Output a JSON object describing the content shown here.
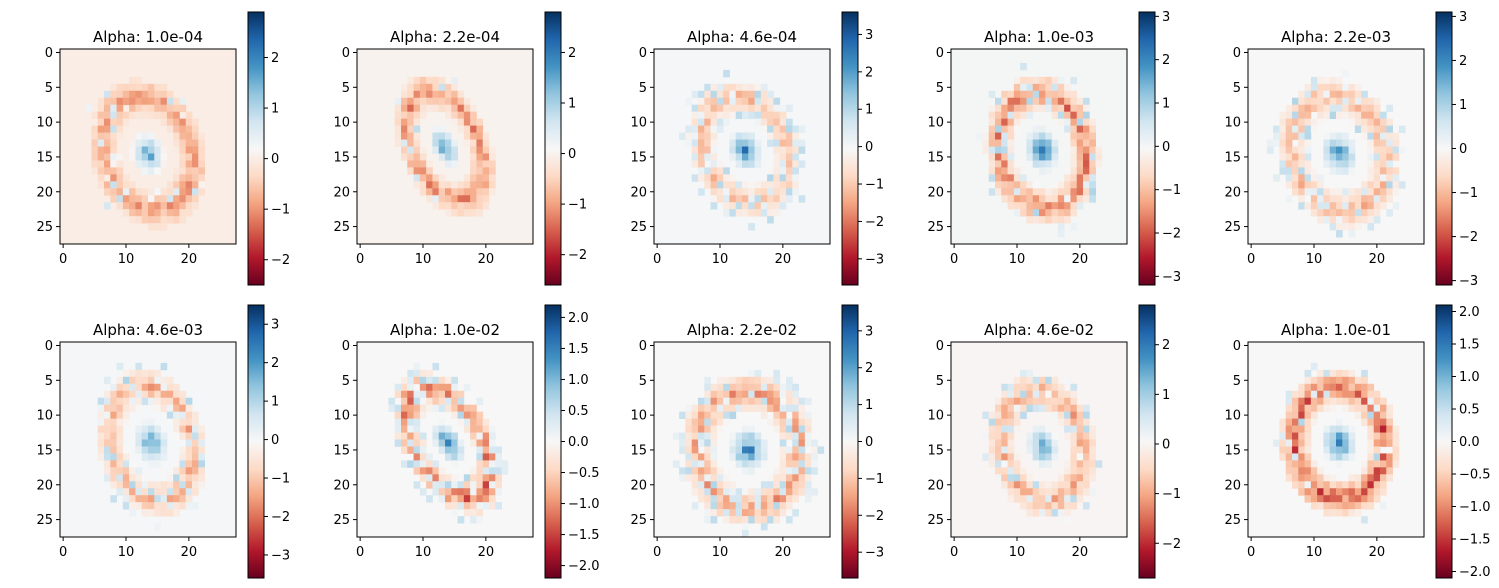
{
  "figure": {
    "layout": "2 rows x 5 columns of heatmaps, each with its own vertical colorbar",
    "colormap": "RdBu",
    "colormap_stops": [
      "#67001f",
      "#b2182b",
      "#d6604d",
      "#f4a582",
      "#fddbc7",
      "#f7f7f7",
      "#d1e5f0",
      "#92c5de",
      "#4393c3",
      "#2166ac",
      "#053061"
    ]
  },
  "chart_data": [
    {
      "type": "heatmap",
      "title": "Alpha: 1.0e-04",
      "x_ticks": [
        "0",
        "10",
        "20"
      ],
      "y_ticks": [
        "0",
        "5",
        "10",
        "15",
        "20",
        "25"
      ],
      "xlim": [
        -0.5,
        27.5
      ],
      "ylim": [
        27.5,
        -0.5
      ],
      "colorbar": {
        "vmin": -2.5,
        "vmax": 2.9,
        "tick_values": [
          -2,
          -1,
          0,
          1,
          2
        ],
        "tick_labels": [
          "−2",
          "−1",
          "0",
          "1",
          "2"
        ]
      },
      "pattern": {
        "ring_cx": 13.5,
        "ring_cy": 14.5,
        "rx": 8.5,
        "ry": 10.5,
        "tilt": 0.45,
        "ring": 0.5,
        "core": 0.75,
        "halo": 0.1,
        "seed": 1
      }
    },
    {
      "type": "heatmap",
      "title": "Alpha: 2.2e-04",
      "x_ticks": [
        "0",
        "10",
        "20"
      ],
      "y_ticks": [
        "0",
        "5",
        "10",
        "15",
        "20",
        "25"
      ],
      "xlim": [
        -0.5,
        27.5
      ],
      "ylim": [
        27.5,
        -0.5
      ],
      "colorbar": {
        "vmin": -2.6,
        "vmax": 2.8,
        "tick_values": [
          -2,
          -1,
          0,
          1,
          2
        ],
        "tick_labels": [
          "−2",
          "−1",
          "0",
          "1",
          "2"
        ]
      },
      "pattern": {
        "ring_cx": 13.5,
        "ring_cy": 13.5,
        "rx": 6.5,
        "ry": 10.5,
        "tilt": 0.5,
        "ring": 0.6,
        "core": 0.8,
        "halo": 0.05,
        "seed": 2
      }
    },
    {
      "type": "heatmap",
      "title": "Alpha: 4.6e-04",
      "x_ticks": [
        "0",
        "10",
        "20"
      ],
      "y_ticks": [
        "0",
        "5",
        "10",
        "15",
        "20",
        "25"
      ],
      "xlim": [
        -0.5,
        27.5
      ],
      "ylim": [
        27.5,
        -0.5
      ],
      "colorbar": {
        "vmin": -3.7,
        "vmax": 3.6,
        "tick_values": [
          -3,
          -2,
          -1,
          0,
          1,
          2,
          3
        ],
        "tick_labels": [
          "−3",
          "−2",
          "−1",
          "0",
          "1",
          "2",
          "3"
        ]
      },
      "pattern": {
        "ring_cx": 14.0,
        "ring_cy": 14.0,
        "rx": 8.0,
        "ry": 10.0,
        "tilt": 0.55,
        "ring": 0.45,
        "core": 0.8,
        "halo": 0.25,
        "seed": 3
      }
    },
    {
      "type": "heatmap",
      "title": "Alpha: 1.0e-03",
      "x_ticks": [
        "0",
        "10",
        "20"
      ],
      "y_ticks": [
        "0",
        "5",
        "10",
        "15",
        "20",
        "25"
      ],
      "xlim": [
        -0.5,
        27.5
      ],
      "ylim": [
        27.5,
        -0.5
      ],
      "colorbar": {
        "vmin": -3.2,
        "vmax": 3.1,
        "tick_values": [
          -3,
          -2,
          -1,
          0,
          1,
          2,
          3
        ],
        "tick_labels": [
          "−3",
          "−2",
          "−1",
          "0",
          "1",
          "2",
          "3"
        ]
      },
      "pattern": {
        "ring_cx": 14.0,
        "ring_cy": 14.0,
        "rx": 8.5,
        "ry": 10.5,
        "tilt": 0.25,
        "ring": 0.7,
        "core": 0.85,
        "halo": 0.15,
        "seed": 4
      }
    },
    {
      "type": "heatmap",
      "title": "Alpha: 2.2e-03",
      "x_ticks": [
        "0",
        "10",
        "20"
      ],
      "y_ticks": [
        "0",
        "5",
        "10",
        "15",
        "20",
        "25"
      ],
      "xlim": [
        -0.5,
        27.5
      ],
      "ylim": [
        27.5,
        -0.5
      ],
      "colorbar": {
        "vmin": -3.1,
        "vmax": 3.1,
        "tick_values": [
          -3,
          -2,
          -1,
          0,
          1,
          2,
          3
        ],
        "tick_labels": [
          "−3",
          "−2",
          "−1",
          "0",
          "1",
          "2",
          "3"
        ]
      },
      "pattern": {
        "ring_cx": 14.0,
        "ring_cy": 14.5,
        "rx": 9.0,
        "ry": 10.5,
        "tilt": 0.5,
        "ring": 0.45,
        "core": 0.75,
        "halo": 0.2,
        "seed": 5
      }
    },
    {
      "type": "heatmap",
      "title": "Alpha: 4.6e-03",
      "x_ticks": [
        "0",
        "10",
        "20"
      ],
      "y_ticks": [
        "0",
        "5",
        "10",
        "15",
        "20",
        "25"
      ],
      "xlim": [
        -0.5,
        27.5
      ],
      "ylim": [
        27.5,
        -0.5
      ],
      "colorbar": {
        "vmin": -3.6,
        "vmax": 3.5,
        "tick_values": [
          -3,
          -2,
          -1,
          0,
          1,
          2,
          3
        ],
        "tick_labels": [
          "−3",
          "−2",
          "−1",
          "0",
          "1",
          "2",
          "3"
        ]
      },
      "pattern": {
        "ring_cx": 14.0,
        "ring_cy": 14.0,
        "rx": 8.0,
        "ry": 10.5,
        "tilt": 0.35,
        "ring": 0.5,
        "core": 0.7,
        "halo": 0.15,
        "seed": 6
      }
    },
    {
      "type": "heatmap",
      "title": "Alpha: 1.0e-02",
      "x_ticks": [
        "0",
        "10",
        "20"
      ],
      "y_ticks": [
        "0",
        "5",
        "10",
        "15",
        "20",
        "25"
      ],
      "xlim": [
        -0.5,
        27.5
      ],
      "ylim": [
        27.5,
        -0.5
      ],
      "colorbar": {
        "vmin": -2.2,
        "vmax": 2.2,
        "tick_values": [
          -2.0,
          -1.5,
          -1.0,
          -0.5,
          0.0,
          0.5,
          1.0,
          1.5,
          2.0
        ],
        "tick_labels": [
          "−2.0",
          "−1.5",
          "−1.0",
          "−0.5",
          "0.0",
          "0.5",
          "1.0",
          "1.5",
          "2.0"
        ]
      },
      "pattern": {
        "ring_cx": 14.0,
        "ring_cy": 14.0,
        "rx": 6.5,
        "ry": 11.0,
        "tilt": 0.6,
        "ring": 0.75,
        "core": 0.85,
        "halo": 0.3,
        "seed": 7
      }
    },
    {
      "type": "heatmap",
      "title": "Alpha: 2.2e-02",
      "x_ticks": [
        "0",
        "10",
        "20"
      ],
      "y_ticks": [
        "0",
        "5",
        "10",
        "15",
        "20",
        "25"
      ],
      "xlim": [
        -0.5,
        27.5
      ],
      "ylim": [
        27.5,
        -0.5
      ],
      "colorbar": {
        "vmin": -3.7,
        "vmax": 3.7,
        "tick_values": [
          -3,
          -2,
          -1,
          0,
          1,
          2,
          3
        ],
        "tick_labels": [
          "−3",
          "−2",
          "−1",
          "0",
          "1",
          "2",
          "3"
        ]
      },
      "pattern": {
        "ring_cx": 14.5,
        "ring_cy": 15.0,
        "rx": 10.0,
        "ry": 10.5,
        "tilt": 0.35,
        "ring": 0.55,
        "core": 0.85,
        "halo": 0.3,
        "seed": 8
      }
    },
    {
      "type": "heatmap",
      "title": "Alpha: 4.6e-02",
      "x_ticks": [
        "0",
        "10",
        "20"
      ],
      "y_ticks": [
        "0",
        "5",
        "10",
        "15",
        "20",
        "25"
      ],
      "xlim": [
        -0.5,
        27.5
      ],
      "ylim": [
        27.5,
        -0.5
      ],
      "colorbar": {
        "vmin": -2.7,
        "vmax": 2.8,
        "tick_values": [
          -2,
          -1,
          0,
          1,
          2
        ],
        "tick_labels": [
          "−2",
          "−1",
          "0",
          "1",
          "2"
        ]
      },
      "pattern": {
        "ring_cx": 14.0,
        "ring_cy": 14.5,
        "rx": 8.0,
        "ry": 10.0,
        "tilt": 0.3,
        "ring": 0.5,
        "core": 0.7,
        "halo": 0.2,
        "seed": 9
      }
    },
    {
      "type": "heatmap",
      "title": "Alpha: 1.0e-01",
      "x_ticks": [
        "0",
        "10",
        "20"
      ],
      "y_ticks": [
        "0",
        "5",
        "10",
        "15",
        "20",
        "25"
      ],
      "xlim": [
        -0.5,
        27.5
      ],
      "ylim": [
        27.5,
        -0.5
      ],
      "colorbar": {
        "vmin": -2.1,
        "vmax": 2.1,
        "tick_values": [
          -2.0,
          -1.5,
          -1.0,
          -0.5,
          0.0,
          0.5,
          1.0,
          1.5,
          2.0
        ],
        "tick_labels": [
          "−2.0",
          "−1.5",
          "−1.0",
          "−0.5",
          "0.0",
          "0.5",
          "1.0",
          "1.5",
          "2.0"
        ]
      },
      "pattern": {
        "ring_cx": 14.0,
        "ring_cy": 14.0,
        "rx": 9.0,
        "ry": 10.0,
        "tilt": 0.2,
        "ring": 0.8,
        "core": 0.85,
        "halo": 0.1,
        "seed": 10
      }
    }
  ]
}
